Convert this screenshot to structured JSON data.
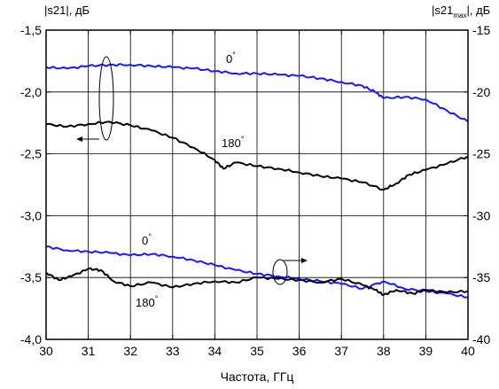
{
  "chart_data": {
    "type": "line",
    "xlabel": "Частота, ГГц",
    "ylabel_left": "|s21|, дБ",
    "ylabel_right_main": "|s21",
    "ylabel_right_sub": "max",
    "ylabel_right_tail": "|, дБ",
    "xlim": [
      30,
      40
    ],
    "ylim_left": [
      -4.0,
      -1.5
    ],
    "ylim_right": [
      -40,
      -15
    ],
    "grid": true,
    "x_ticks": [
      "30",
      "31",
      "32",
      "33",
      "34",
      "35",
      "36",
      "37",
      "38",
      "39",
      "40"
    ],
    "y_left_ticks": [
      "-1,5",
      "-2,0",
      "-2,5",
      "-3,0",
      "-3,5",
      "-4,0"
    ],
    "y_right_ticks": [
      "-15",
      "-20",
      "-25",
      "-30",
      "-35",
      "-40"
    ],
    "series": [
      {
        "name": "0°",
        "axis": "left",
        "color": "#1a1aff",
        "x": [
          30,
          30.5,
          31,
          31.5,
          32,
          32.5,
          33,
          33.5,
          34,
          34.5,
          35,
          35.5,
          36,
          36.5,
          37,
          37.5,
          37.8,
          38,
          38.5,
          39,
          39.5,
          40
        ],
        "y": [
          -1.8,
          -1.81,
          -1.79,
          -1.78,
          -1.78,
          -1.79,
          -1.8,
          -1.81,
          -1.83,
          -1.85,
          -1.85,
          -1.86,
          -1.87,
          -1.89,
          -1.92,
          -1.95,
          -2.0,
          -2.05,
          -2.04,
          -2.06,
          -2.15,
          -2.24
        ]
      },
      {
        "name": "180°",
        "axis": "left",
        "color": "#000000",
        "x": [
          30,
          30.5,
          31,
          31.5,
          32,
          32.5,
          33,
          33.5,
          34,
          34.2,
          34.5,
          35,
          35.5,
          36,
          36.5,
          37,
          37.5,
          38,
          38.3,
          38.6,
          39,
          39.5,
          40
        ],
        "y": [
          -2.26,
          -2.28,
          -2.26,
          -2.24,
          -2.27,
          -2.31,
          -2.37,
          -2.45,
          -2.55,
          -2.62,
          -2.57,
          -2.6,
          -2.62,
          -2.65,
          -2.68,
          -2.7,
          -2.73,
          -2.79,
          -2.74,
          -2.67,
          -2.63,
          -2.58,
          -2.52
        ]
      },
      {
        "name": "0°",
        "axis": "right",
        "color": "#1a1aff",
        "x": [
          30,
          30.5,
          31,
          31.5,
          32,
          32.5,
          33,
          33.5,
          34,
          34.5,
          35,
          35.5,
          36,
          36.5,
          37,
          37.5,
          38,
          38.5,
          39,
          39.5,
          40
        ],
        "y": [
          -32.5,
          -32.8,
          -32.9,
          -33.0,
          -33.2,
          -33.1,
          -33.3,
          -33.6,
          -34.0,
          -34.4,
          -34.7,
          -34.9,
          -35.1,
          -35.3,
          -35.5,
          -35.9,
          -35.3,
          -35.9,
          -36.1,
          -36.3,
          -36.6
        ]
      },
      {
        "name": "180°",
        "axis": "right",
        "color": "#000000",
        "x": [
          30,
          30.3,
          30.6,
          31,
          31.3,
          31.6,
          32,
          32.5,
          33,
          33.5,
          34,
          34.5,
          35,
          35.5,
          36,
          36.5,
          37,
          37.5,
          37.8,
          38,
          38.3,
          38.7,
          39,
          39.5,
          40
        ],
        "y": [
          -34.6,
          -35.2,
          -34.9,
          -34.3,
          -34.4,
          -35.3,
          -35.7,
          -35.4,
          -35.8,
          -35.5,
          -35.3,
          -35.4,
          -35.0,
          -35.1,
          -35.2,
          -35.4,
          -35.1,
          -35.6,
          -36.0,
          -36.4,
          -36.0,
          -36.3,
          -36.0,
          -36.2,
          -36.1
        ]
      }
    ],
    "annotations": [
      {
        "text": "0",
        "sup": "°"
      },
      {
        "text": "180",
        "sup": "°"
      },
      {
        "text": "0",
        "sup": "°"
      },
      {
        "text": "180",
        "sup": "°"
      }
    ]
  }
}
